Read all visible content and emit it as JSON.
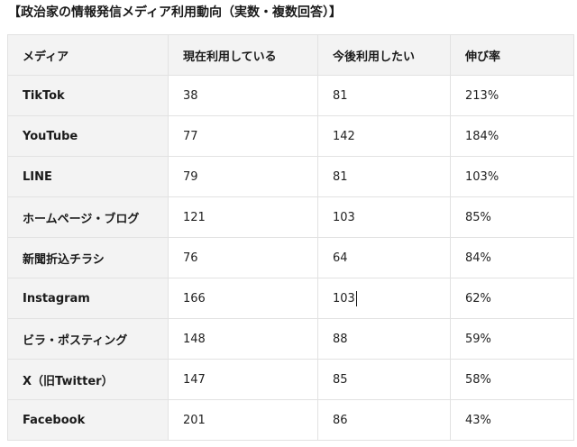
{
  "title": "【政治家の情報発信メディア利用動向（実数・複数回答）】",
  "table": {
    "headers": [
      "メディア",
      "現在利用している",
      "今後利用したい",
      "伸び率"
    ],
    "rows": [
      {
        "media": "TikTok",
        "current": "38",
        "future": "81",
        "growth": "213%"
      },
      {
        "media": "YouTube",
        "current": "77",
        "future": "142",
        "growth": "184%"
      },
      {
        "media": "LINE",
        "current": "79",
        "future": "81",
        "growth": "103%"
      },
      {
        "media": "ホームページ・ブログ",
        "current": "121",
        "future": "103",
        "growth": "85%"
      },
      {
        "media": "新聞折込チラシ",
        "current": "76",
        "future": "64",
        "growth": "84%"
      },
      {
        "media": "Instagram",
        "current": "166",
        "future": "103",
        "growth": "62%"
      },
      {
        "media": "ビラ・ポスティング",
        "current": "148",
        "future": "88",
        "growth": "59%"
      },
      {
        "media": "X（旧Twitter）",
        "current": "147",
        "future": "85",
        "growth": "58%"
      },
      {
        "media": "Facebook",
        "current": "201",
        "future": "86",
        "growth": "43%"
      }
    ]
  }
}
